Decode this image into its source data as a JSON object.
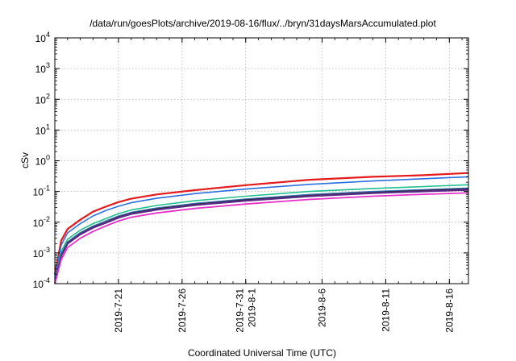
{
  "chart_data": {
    "type": "line",
    "title": "/data/run/goesPlots/archive/2019-08-16/flux/../bryn/31daysMarsAccumulated.plot",
    "xlabel": "Coordinated Universal Time (UTC)",
    "ylabel": "cSv",
    "y_scale": "log",
    "ylim": [
      0.0001,
      10000
    ],
    "xlim": [
      "2019-07-16",
      "2019-08-17.5"
    ],
    "grid": true,
    "y_ticks": [
      {
        "base": "10",
        "exp": "-4"
      },
      {
        "base": "10",
        "exp": "-3"
      },
      {
        "base": "10",
        "exp": "-2"
      },
      {
        "base": "10",
        "exp": "-1"
      },
      {
        "base": "10",
        "exp": "0"
      },
      {
        "base": "10",
        "exp": "1"
      },
      {
        "base": "10",
        "exp": "2"
      },
      {
        "base": "10",
        "exp": "3"
      },
      {
        "base": "10",
        "exp": "4"
      }
    ],
    "x_ticks": [
      {
        "date": "2019-07-21",
        "lines": [
          "2019-7-21"
        ]
      },
      {
        "date": "2019-07-26",
        "lines": [
          "2019-7-26"
        ]
      },
      {
        "date": "2019-07-31",
        "lines": [
          "2019-7-31",
          "2019-8-1"
        ]
      },
      {
        "date": "2019-08-06",
        "lines": [
          "2019-8-6"
        ]
      },
      {
        "date": "2019-08-11",
        "lines": [
          "2019-8-11"
        ]
      },
      {
        "date": "2019-08-16",
        "lines": [
          "2019-8-16"
        ]
      }
    ],
    "x": [
      "2019-07-16",
      "2019-07-16.5",
      "2019-07-17",
      "2019-07-18",
      "2019-07-19",
      "2019-07-20",
      "2019-07-21",
      "2019-07-22",
      "2019-07-24",
      "2019-07-27",
      "2019-07-31",
      "2019-08-05",
      "2019-08-10",
      "2019-08-14",
      "2019-08-17.5"
    ],
    "series": [
      {
        "color": "#e41a1c",
        "width": 2.2,
        "values": [
          0.0002,
          0.0025,
          0.006,
          0.012,
          0.022,
          0.032,
          0.045,
          0.058,
          0.08,
          0.11,
          0.16,
          0.24,
          0.3,
          0.34,
          0.4
        ]
      },
      {
        "color": "#2b6fe0",
        "width": 1.6,
        "values": [
          0.00015,
          0.0018,
          0.0045,
          0.009,
          0.016,
          0.024,
          0.033,
          0.043,
          0.06,
          0.085,
          0.12,
          0.17,
          0.22,
          0.26,
          0.3
        ]
      },
      {
        "color": "#1fbf8f",
        "width": 1.6,
        "values": [
          0.0001,
          0.0011,
          0.0028,
          0.0055,
          0.009,
          0.013,
          0.019,
          0.025,
          0.035,
          0.05,
          0.07,
          0.1,
          0.125,
          0.145,
          0.165
        ]
      },
      {
        "color": "#3a6fb0",
        "width": 1.4,
        "values": [
          0.0001,
          0.0009,
          0.0023,
          0.0046,
          0.0075,
          0.011,
          0.016,
          0.021,
          0.029,
          0.041,
          0.057,
          0.08,
          0.1,
          0.115,
          0.13
        ]
      },
      {
        "color": "#1a1a1a",
        "width": 1.4,
        "values": [
          0.0001,
          0.00085,
          0.0021,
          0.0042,
          0.007,
          0.01,
          0.0148,
          0.0195,
          0.027,
          0.038,
          0.053,
          0.074,
          0.093,
          0.107,
          0.12
        ]
      },
      {
        "color": "#5b2a86",
        "width": 2.2,
        "values": [
          0.0001,
          0.0008,
          0.002,
          0.004,
          0.0066,
          0.0095,
          0.014,
          0.0185,
          0.0255,
          0.036,
          0.05,
          0.07,
          0.088,
          0.101,
          0.112
        ]
      },
      {
        "color": "#e831c8",
        "width": 1.8,
        "values": [
          0.0001,
          0.0006,
          0.0015,
          0.003,
          0.005,
          0.0075,
          0.011,
          0.0145,
          0.02,
          0.028,
          0.039,
          0.055,
          0.07,
          0.081,
          0.09
        ]
      }
    ]
  }
}
